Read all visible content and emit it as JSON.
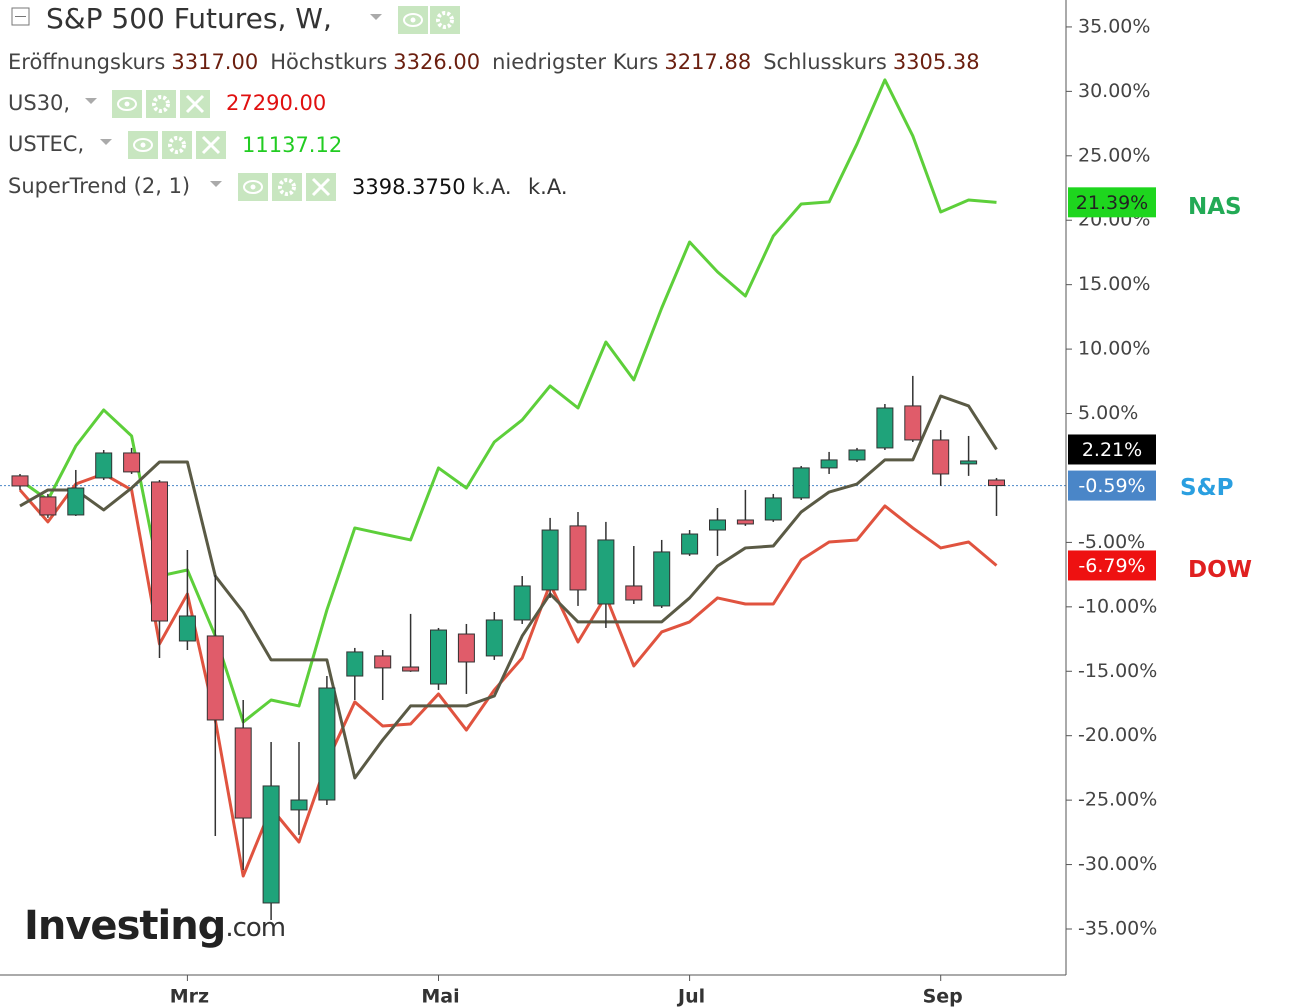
{
  "header": {
    "title": "S&P 500 Futures, W,",
    "ohlc": [
      {
        "label": "Eröffnungskurs",
        "value": "3317.00"
      },
      {
        "label": "Höchstkurs",
        "value": "3326.00"
      },
      {
        "label": "niedrigster Kurs",
        "value": "3217.88"
      },
      {
        "label": "Schlusskurs",
        "value": "3305.38"
      }
    ],
    "indicators": [
      {
        "name": "US30,",
        "value": "27290.00"
      },
      {
        "name": "USTEC,",
        "value": "11137.12"
      },
      {
        "name": "SuperTrend (2, 1)",
        "value": "3398.3750",
        "extra": [
          "k.A.",
          "k.A."
        ]
      }
    ]
  },
  "watermark": {
    "brand": "Investing",
    "suffix": ".com"
  },
  "chart_data": {
    "type": "candlestick",
    "categories": [
      null,
      null,
      null,
      null,
      null,
      null,
      "Mrz",
      null,
      null,
      null,
      null,
      null,
      null,
      null,
      null,
      "Mai",
      null,
      null,
      null,
      null,
      null,
      null,
      null,
      null,
      "Jul",
      null,
      null,
      null,
      null,
      null,
      null,
      null,
      null,
      "Sep",
      null,
      null
    ],
    "candles": {
      "name": "S&P",
      "name_color": "#2a9fe0",
      "up_color": "#1fa37a",
      "down_color": "#e05c6a",
      "badge_color": "#4a86c8",
      "last_label": "-0.59%",
      "open": [
        0.16,
        -1.47,
        -2.87,
        0,
        1.94,
        -0.31,
        -12.65,
        -12.26,
        -19.4,
        -32.98,
        -25.76,
        -24.99,
        -15.37,
        -13.81,
        -14.67,
        -15.99,
        -12.11,
        -13.81,
        -11.02,
        -8.69,
        -3.72,
        -9.78,
        -8.38,
        -9.93,
        -5.9,
        -4.04,
        -3.26,
        -3.26,
        -1.55,
        0.78,
        1.4,
        2.33,
        5.59,
        2.95,
        1.09,
        -0.16
      ],
      "high": [
        0.31,
        -1.24,
        0.62,
        2.17,
        2.33,
        -0.16,
        -5.59,
        -7.53,
        -17.23,
        -20.49,
        -20.49,
        -15.37,
        -13.19,
        -13.35,
        -10.55,
        -11.64,
        -11.33,
        -10.4,
        -7.61,
        -3.1,
        -2.64,
        -3.41,
        -5.28,
        -4.81,
        -4.04,
        -2.33,
        -0.93,
        -1.24,
        0.93,
        2.02,
        2.33,
        5.74,
        7.92,
        3.72,
        3.26,
        0
      ],
      "low": [
        -0.93,
        -3.1,
        -2.95,
        -0.16,
        0.31,
        -13.97,
        -13.35,
        -27.78,
        -30.42,
        -34.3,
        -27.7,
        -25.38,
        -17.23,
        -17.23,
        -15.05,
        -16.45,
        -16.76,
        -14.12,
        -11.33,
        -9.31,
        -9.93,
        -11.64,
        -9.78,
        -10.09,
        -6.05,
        -6.05,
        -3.72,
        -3.41,
        -1.71,
        0.31,
        1.24,
        2.17,
        2.79,
        -0.62,
        0.16,
        -2.95
      ],
      "close": [
        -0.62,
        -2.87,
        -0.78,
        1.94,
        0.47,
        -11.1,
        -10.71,
        -18.78,
        -26.39,
        -23.9,
        -24.99,
        -16.3,
        -13.5,
        -14.74,
        -14.98,
        -11.8,
        -14.28,
        -11.02,
        -8.38,
        -4.04,
        -8.69,
        -4.81,
        -9.47,
        -5.74,
        -4.35,
        -3.26,
        -3.57,
        -1.55,
        0.78,
        1.4,
        2.17,
        5.43,
        2.95,
        0.31,
        1.32,
        -0.59
      ]
    },
    "series": [
      {
        "name": "NAS",
        "color": "#5dcf3a",
        "name_color": "#22aa55",
        "badge_color": "#1ed61e",
        "badge_text": "#222",
        "last_label": "21.39%",
        "values": [
          -0.16,
          -1.71,
          2.48,
          5.28,
          3.26,
          -7.61,
          -7.14,
          -12.26,
          -18.94,
          -17.23,
          -17.69,
          -10.24,
          -3.88,
          -4.35,
          -4.81,
          0.78,
          -0.78,
          2.79,
          4.5,
          7.14,
          5.43,
          10.55,
          7.61,
          13.19,
          18.31,
          15.99,
          14.12,
          18.78,
          21.26,
          21.42,
          25.92,
          30.89,
          26.54,
          20.64,
          21.57,
          21.39
        ]
      },
      {
        "name": "DOW",
        "color": "#e0533f",
        "name_color": "#e02020",
        "badge_color": "#ee1111",
        "badge_text": "#fff",
        "last_label": "-6.79%",
        "values": [
          -0.93,
          -3.41,
          -0.47,
          0.31,
          -0.93,
          -12.88,
          -9.0,
          -18.78,
          -30.89,
          -25.61,
          -28.25,
          -22.04,
          -17.38,
          -19.25,
          -19.09,
          -16.76,
          -19.56,
          -16.45,
          -13.97,
          -8.23,
          -12.73,
          -9.16,
          -14.59,
          -11.95,
          -11.17,
          -9.31,
          -9.78,
          -9.78,
          -6.36,
          -4.97,
          -4.81,
          -2.17,
          -3.88,
          -5.43,
          -4.97,
          -6.79
        ]
      },
      {
        "color": "#5a5a45",
        "badge_color": "#000000",
        "badge_text": "#fff",
        "last_label": "2.21%",
        "values": [
          -2.17,
          -0.93,
          -0.93,
          -2.48,
          -0.78,
          1.24,
          1.24,
          -7.61,
          -10.4,
          -14.12,
          -14.12,
          -14.12,
          -23.28,
          -20.33,
          -17.69,
          -17.69,
          -17.69,
          -16.92,
          -12.26,
          -9.0,
          -11.17,
          -11.17,
          -11.17,
          -11.17,
          -9.31,
          -6.83,
          -5.43,
          -5.28,
          -2.64,
          -1.09,
          -0.47,
          1.4,
          1.4,
          6.36,
          5.59,
          2.21
        ]
      }
    ],
    "ylim": [
      -38.57,
      37.09
    ],
    "yticks": [
      {
        "value": 35,
        "label": "35.00%"
      },
      {
        "value": 30,
        "label": "30.00%"
      },
      {
        "value": 25,
        "label": "25.00%"
      },
      {
        "value": 20,
        "label": "20.00%"
      },
      {
        "value": 15,
        "label": "15.00%"
      },
      {
        "value": 10,
        "label": "10.00%"
      },
      {
        "value": 5,
        "label": "5.00%"
      },
      {
        "value": -5,
        "label": "-5.00%"
      },
      {
        "value": -10,
        "label": "-10.00%"
      },
      {
        "value": -15,
        "label": "-15.00%"
      },
      {
        "value": -20,
        "label": "-20.00%"
      },
      {
        "value": -25,
        "label": "-25.00%"
      },
      {
        "value": -30,
        "label": "-30.00%"
      },
      {
        "value": -35,
        "label": "-35.00%"
      }
    ],
    "grid": false
  }
}
